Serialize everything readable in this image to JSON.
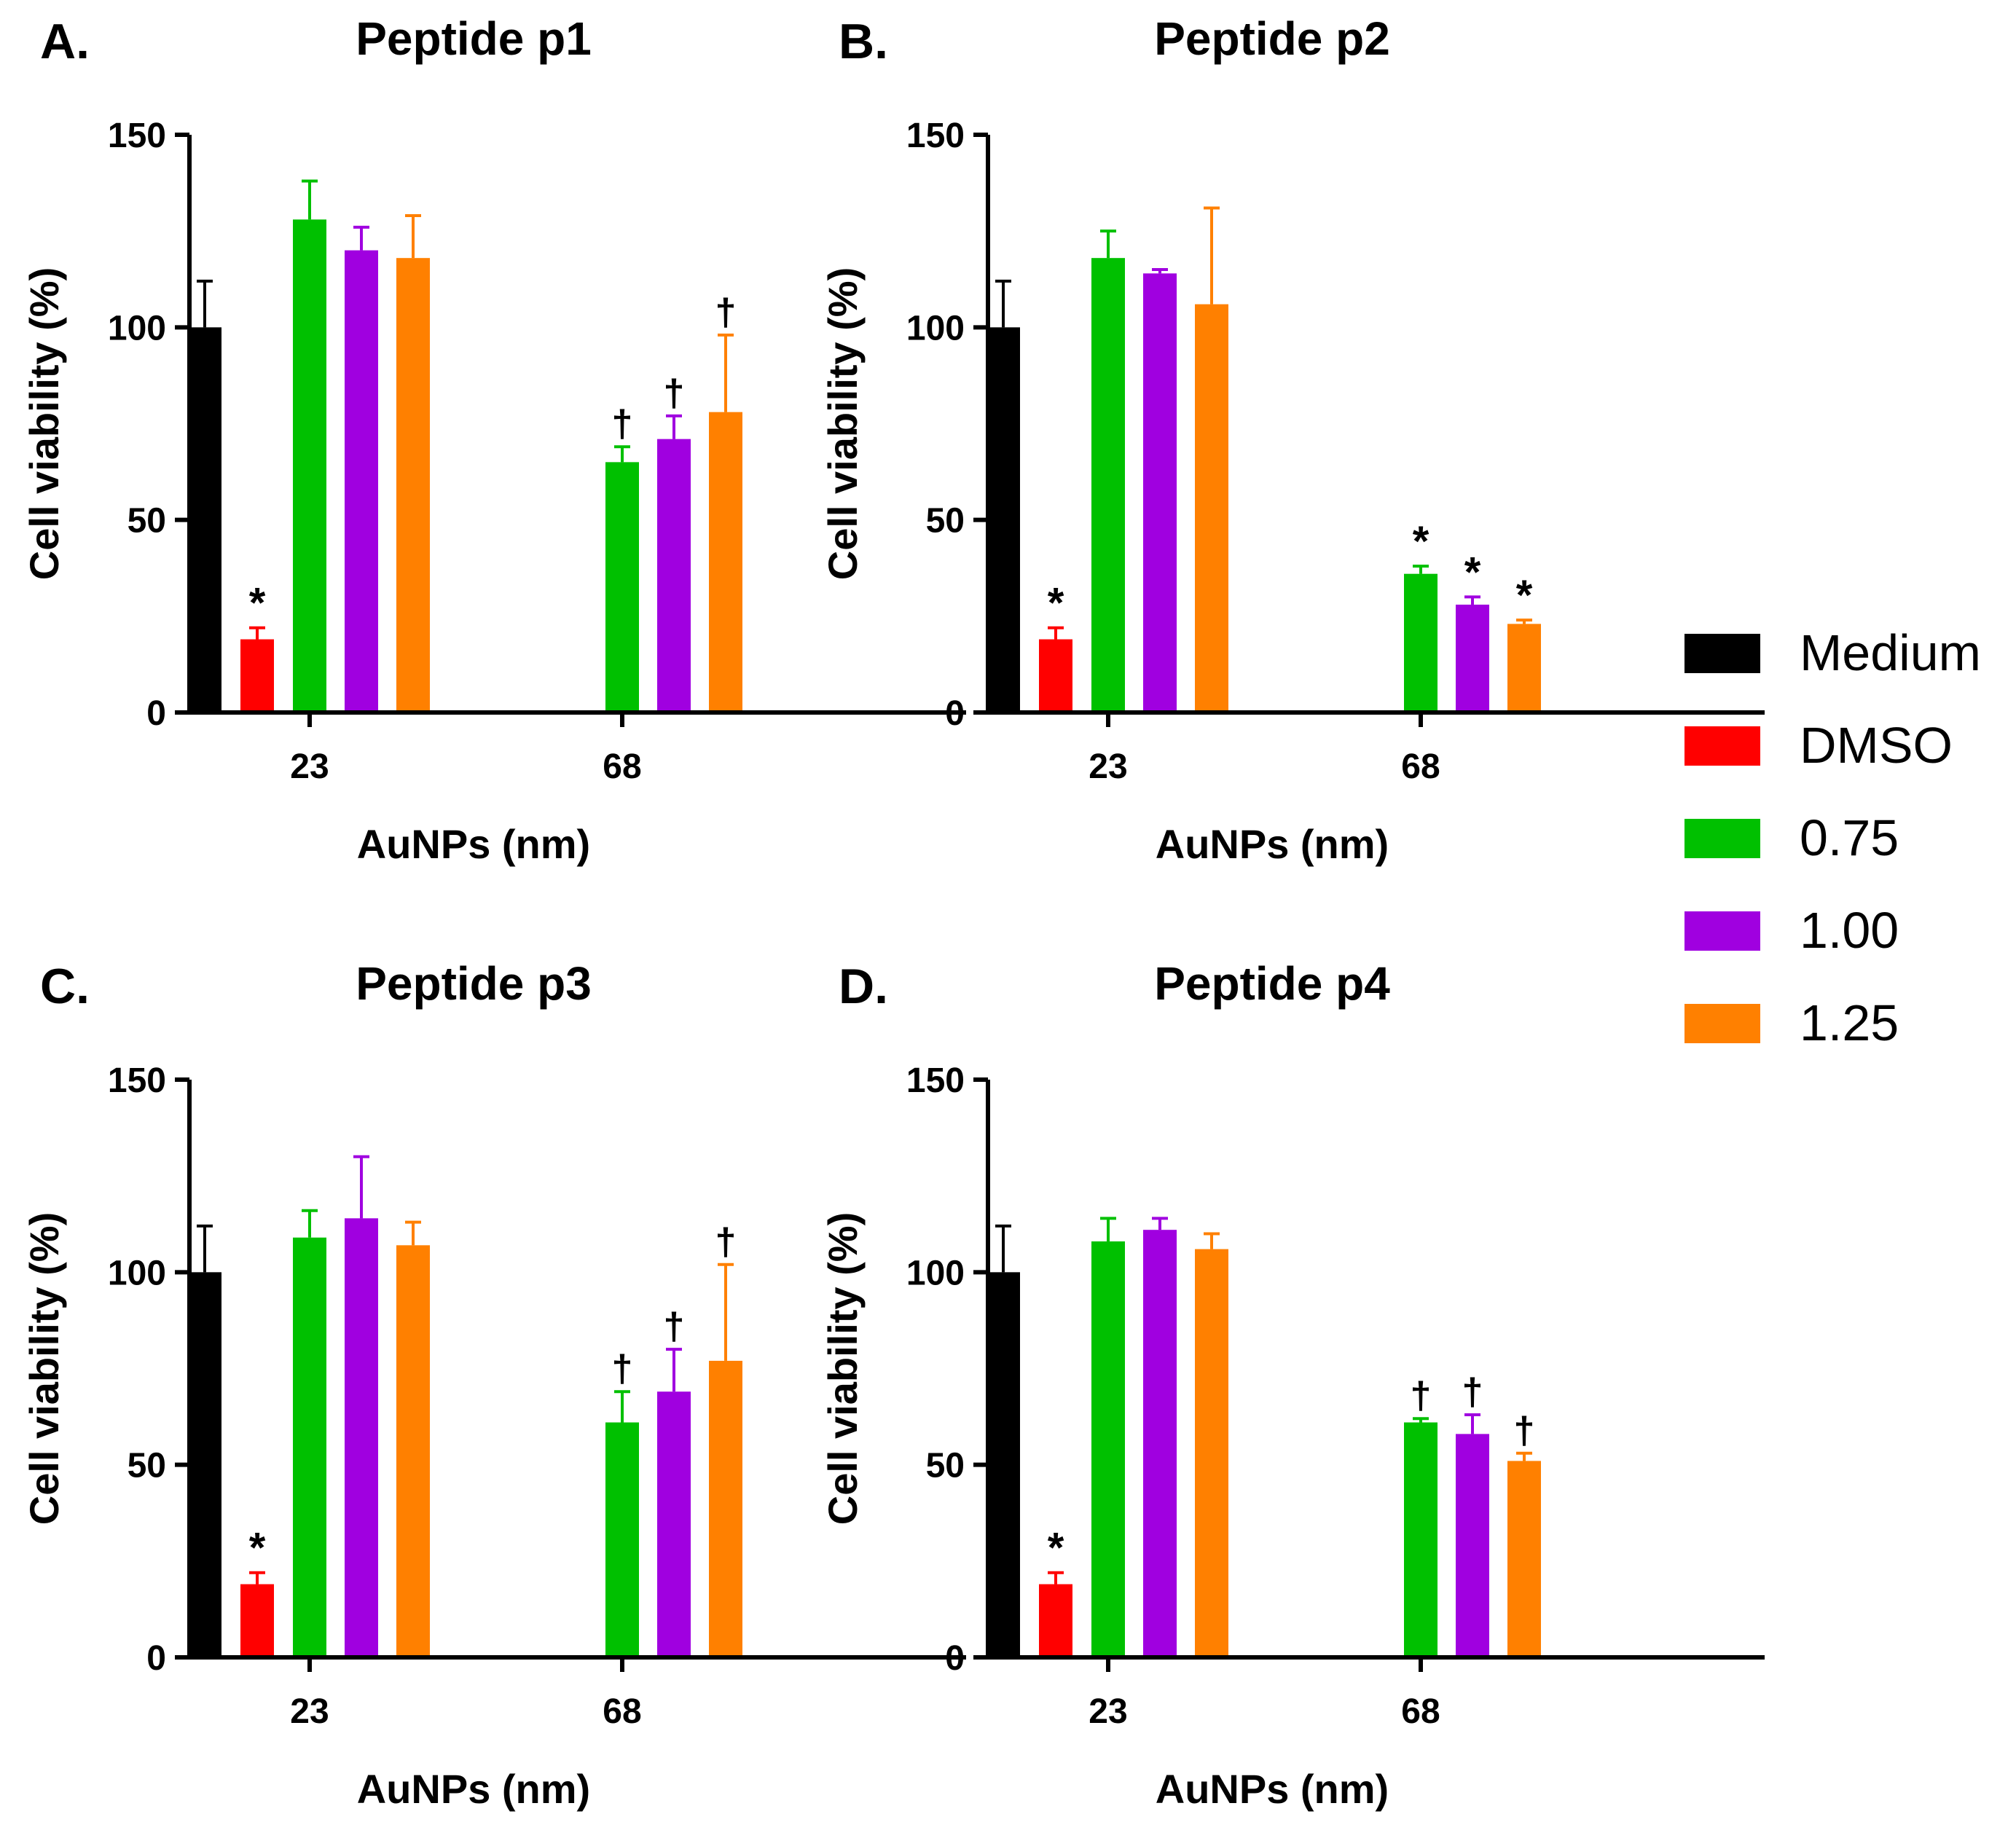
{
  "legend": [
    {
      "label": "Medium",
      "color": "#000000"
    },
    {
      "label": "DMSO",
      "color": "#ff0000"
    },
    {
      "label": "0.75",
      "color": "#00c000"
    },
    {
      "label": "1.00",
      "color": "#a000e0"
    },
    {
      "label": "1.25",
      "color": "#ff8000"
    }
  ],
  "chart_data": [
    {
      "type": "bar",
      "panel": "A.",
      "title": "Peptide p1",
      "xlabel": "AuNPs (nm)",
      "ylabel": "Cell viability (%)",
      "ylim": [
        0,
        150
      ],
      "yticks": [
        "0",
        "50",
        "100",
        "150"
      ],
      "categories": [
        "23",
        "68"
      ],
      "series": [
        {
          "name": "Medium",
          "values": [
            100,
            null
          ],
          "errors": [
            12,
            null
          ],
          "marks": [
            "",
            ""
          ]
        },
        {
          "name": "DMSO",
          "values": [
            19,
            null
          ],
          "errors": [
            3,
            null
          ],
          "marks": [
            "*",
            ""
          ]
        },
        {
          "name": "0.75",
          "values": [
            128,
            65
          ],
          "errors": [
            10,
            4
          ],
          "marks": [
            "",
            "†"
          ]
        },
        {
          "name": "1.00",
          "values": [
            120,
            71
          ],
          "errors": [
            6,
            6
          ],
          "marks": [
            "",
            "†"
          ]
        },
        {
          "name": "1.25",
          "values": [
            118,
            78
          ],
          "errors": [
            11,
            20
          ],
          "marks": [
            "",
            "†"
          ]
        }
      ]
    },
    {
      "type": "bar",
      "panel": "B.",
      "title": "Peptide p2",
      "xlabel": "AuNPs (nm)",
      "ylabel": "Cell viability (%)",
      "ylim": [
        0,
        150
      ],
      "yticks": [
        "0",
        "50",
        "100",
        "150"
      ],
      "categories": [
        "23",
        "68"
      ],
      "series": [
        {
          "name": "Medium",
          "values": [
            100,
            null
          ],
          "errors": [
            12,
            null
          ],
          "marks": [
            "",
            ""
          ]
        },
        {
          "name": "DMSO",
          "values": [
            19,
            null
          ],
          "errors": [
            3,
            null
          ],
          "marks": [
            "*",
            ""
          ]
        },
        {
          "name": "0.75",
          "values": [
            118,
            36
          ],
          "errors": [
            7,
            2
          ],
          "marks": [
            "",
            "*"
          ]
        },
        {
          "name": "1.00",
          "values": [
            114,
            28
          ],
          "errors": [
            1,
            2
          ],
          "marks": [
            "",
            "*"
          ]
        },
        {
          "name": "1.25",
          "values": [
            106,
            23
          ],
          "errors": [
            25,
            1
          ],
          "marks": [
            "",
            "*"
          ]
        }
      ]
    },
    {
      "type": "bar",
      "panel": "C.",
      "title": "Peptide p3",
      "xlabel": "AuNPs (nm)",
      "ylabel": "Cell viability (%)",
      "ylim": [
        0,
        150
      ],
      "yticks": [
        "0",
        "50",
        "100",
        "150"
      ],
      "categories": [
        "23",
        "68"
      ],
      "series": [
        {
          "name": "Medium",
          "values": [
            100,
            null
          ],
          "errors": [
            12,
            null
          ],
          "marks": [
            "",
            ""
          ]
        },
        {
          "name": "DMSO",
          "values": [
            19,
            null
          ],
          "errors": [
            3,
            null
          ],
          "marks": [
            "*",
            ""
          ]
        },
        {
          "name": "0.75",
          "values": [
            109,
            61
          ],
          "errors": [
            7,
            8
          ],
          "marks": [
            "",
            "†"
          ]
        },
        {
          "name": "1.00",
          "values": [
            114,
            69
          ],
          "errors": [
            16,
            11
          ],
          "marks": [
            "",
            "†"
          ]
        },
        {
          "name": "1.25",
          "values": [
            107,
            77
          ],
          "errors": [
            6,
            25
          ],
          "marks": [
            "",
            "†"
          ]
        }
      ]
    },
    {
      "type": "bar",
      "panel": "D.",
      "title": "Peptide p4",
      "xlabel": "AuNPs (nm)",
      "ylabel": "Cell viability (%)",
      "ylim": [
        0,
        150
      ],
      "yticks": [
        "0",
        "50",
        "100",
        "150"
      ],
      "categories": [
        "23",
        "68"
      ],
      "series": [
        {
          "name": "Medium",
          "values": [
            100,
            null
          ],
          "errors": [
            12,
            null
          ],
          "marks": [
            "",
            ""
          ]
        },
        {
          "name": "DMSO",
          "values": [
            19,
            null
          ],
          "errors": [
            3,
            null
          ],
          "marks": [
            "*",
            ""
          ]
        },
        {
          "name": "0.75",
          "values": [
            108,
            61
          ],
          "errors": [
            6,
            1
          ],
          "marks": [
            "",
            "†"
          ]
        },
        {
          "name": "1.00",
          "values": [
            111,
            58
          ],
          "errors": [
            3,
            5
          ],
          "marks": [
            "",
            "†"
          ]
        },
        {
          "name": "1.25",
          "values": [
            106,
            51
          ],
          "errors": [
            4,
            2
          ],
          "marks": [
            "",
            "†"
          ]
        }
      ]
    }
  ]
}
